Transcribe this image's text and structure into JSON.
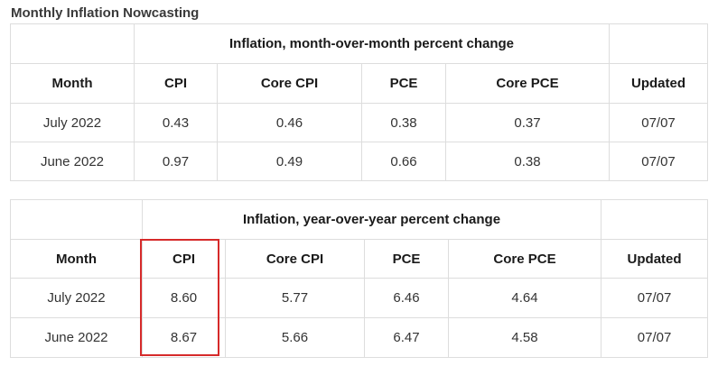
{
  "page": {
    "title": "Monthly Inflation Nowcasting"
  },
  "mom": {
    "group_header": "Inflation, month-over-month percent change",
    "columns": [
      "Month",
      "CPI",
      "Core CPI",
      "PCE",
      "Core PCE",
      "Updated"
    ],
    "rows": [
      [
        "July 2022",
        "0.43",
        "0.46",
        "0.38",
        "0.37",
        "07/07"
      ],
      [
        "June 2022",
        "0.97",
        "0.49",
        "0.66",
        "0.38",
        "07/07"
      ]
    ]
  },
  "yoy": {
    "group_header": "Inflation, year-over-year percent change",
    "columns": [
      "Month",
      "CPI",
      "Core CPI",
      "PCE",
      "Core PCE",
      "Updated"
    ],
    "rows": [
      [
        "July 2022",
        "8.60",
        "5.77",
        "6.46",
        "4.64",
        "07/07"
      ],
      [
        "June 2022",
        "8.67",
        "5.66",
        "6.47",
        "4.58",
        "07/07"
      ]
    ]
  },
  "highlight": {
    "color": "#d62a2a",
    "target": "yoy CPI column"
  }
}
